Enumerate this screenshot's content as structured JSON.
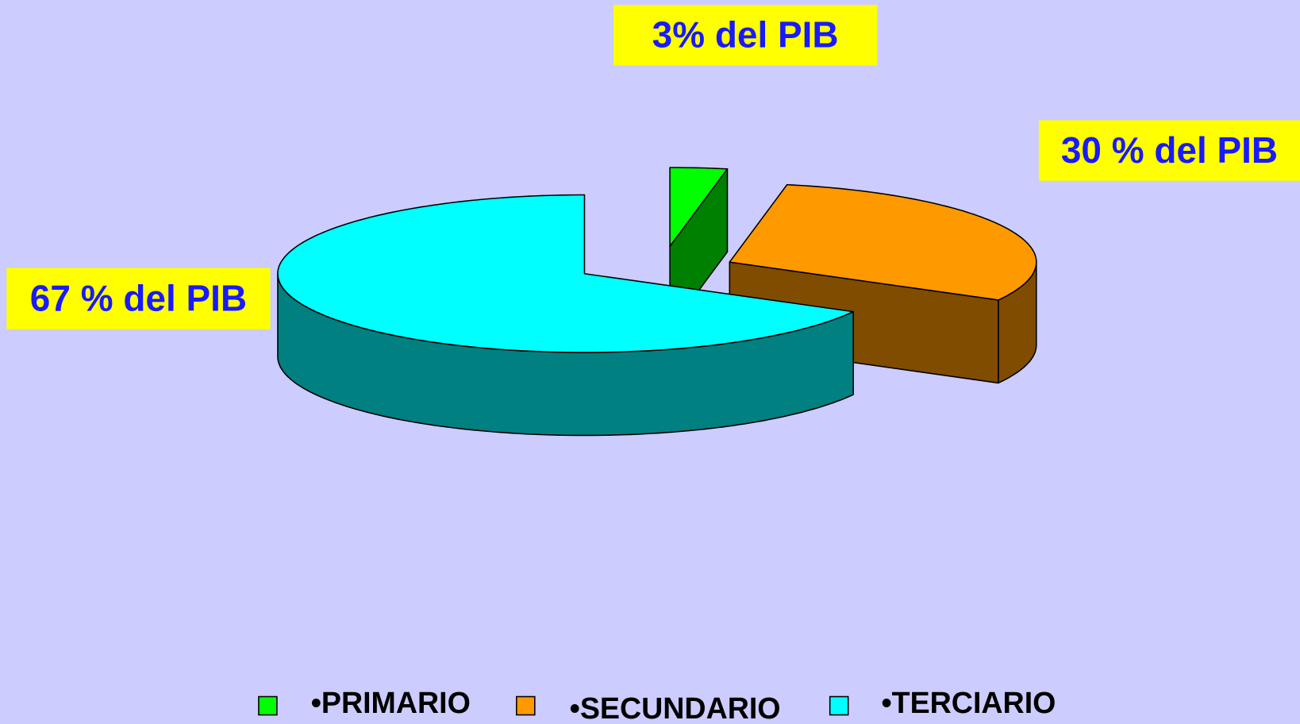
{
  "chart_data": {
    "type": "pie3d",
    "categories": [
      "•PRIMARIO",
      "•SECUNDARIO",
      "•TERCIARIO"
    ],
    "values": [
      3,
      30,
      67
    ],
    "value_labels": [
      "3% del PIB",
      "30 % del PIB",
      "67 % del PIB"
    ],
    "colors": [
      "#00ff00",
      "#ff9900",
      "#00ffff"
    ],
    "side_colors": [
      "#008000",
      "#804c00",
      "#008080"
    ],
    "legend": "bottom"
  }
}
